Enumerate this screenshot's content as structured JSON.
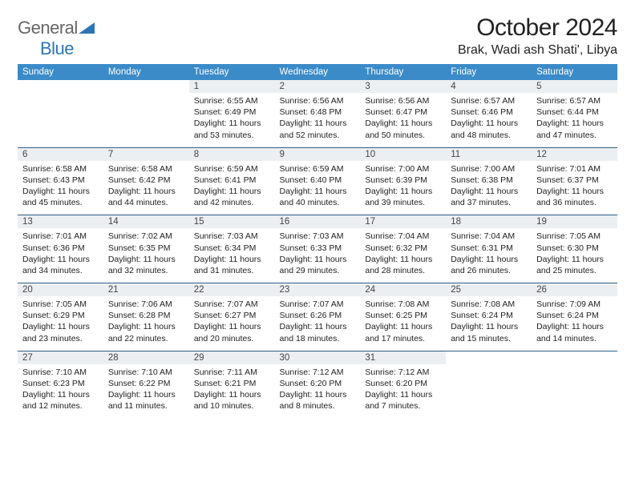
{
  "brand": {
    "general": "General",
    "blue": "Blue"
  },
  "title": "October 2024",
  "location": "Brak, Wadi ash Shati', Libya",
  "colors": {
    "header_bg": "#3b8bc8",
    "header_text": "#ffffff",
    "daynum_bg": "#eceff1",
    "rule": "#2e5f88",
    "logo_blue": "#2e75b6"
  },
  "fonts": {
    "title_pt": 30,
    "location_pt": 16,
    "dayhdr_pt": 11.5,
    "body_pt": 10.5
  },
  "dayHeaders": [
    "Sunday",
    "Monday",
    "Tuesday",
    "Wednesday",
    "Thursday",
    "Friday",
    "Saturday"
  ],
  "weeks": [
    [
      {
        "n": "",
        "lines": [
          "",
          "",
          "",
          ""
        ]
      },
      {
        "n": "",
        "lines": [
          "",
          "",
          "",
          ""
        ]
      },
      {
        "n": "1",
        "lines": [
          "Sunrise: 6:55 AM",
          "Sunset: 6:49 PM",
          "Daylight: 11 hours",
          "and 53 minutes."
        ]
      },
      {
        "n": "2",
        "lines": [
          "Sunrise: 6:56 AM",
          "Sunset: 6:48 PM",
          "Daylight: 11 hours",
          "and 52 minutes."
        ]
      },
      {
        "n": "3",
        "lines": [
          "Sunrise: 6:56 AM",
          "Sunset: 6:47 PM",
          "Daylight: 11 hours",
          "and 50 minutes."
        ]
      },
      {
        "n": "4",
        "lines": [
          "Sunrise: 6:57 AM",
          "Sunset: 6:46 PM",
          "Daylight: 11 hours",
          "and 48 minutes."
        ]
      },
      {
        "n": "5",
        "lines": [
          "Sunrise: 6:57 AM",
          "Sunset: 6:44 PM",
          "Daylight: 11 hours",
          "and 47 minutes."
        ]
      }
    ],
    [
      {
        "n": "6",
        "lines": [
          "Sunrise: 6:58 AM",
          "Sunset: 6:43 PM",
          "Daylight: 11 hours",
          "and 45 minutes."
        ]
      },
      {
        "n": "7",
        "lines": [
          "Sunrise: 6:58 AM",
          "Sunset: 6:42 PM",
          "Daylight: 11 hours",
          "and 44 minutes."
        ]
      },
      {
        "n": "8",
        "lines": [
          "Sunrise: 6:59 AM",
          "Sunset: 6:41 PM",
          "Daylight: 11 hours",
          "and 42 minutes."
        ]
      },
      {
        "n": "9",
        "lines": [
          "Sunrise: 6:59 AM",
          "Sunset: 6:40 PM",
          "Daylight: 11 hours",
          "and 40 minutes."
        ]
      },
      {
        "n": "10",
        "lines": [
          "Sunrise: 7:00 AM",
          "Sunset: 6:39 PM",
          "Daylight: 11 hours",
          "and 39 minutes."
        ]
      },
      {
        "n": "11",
        "lines": [
          "Sunrise: 7:00 AM",
          "Sunset: 6:38 PM",
          "Daylight: 11 hours",
          "and 37 minutes."
        ]
      },
      {
        "n": "12",
        "lines": [
          "Sunrise: 7:01 AM",
          "Sunset: 6:37 PM",
          "Daylight: 11 hours",
          "and 36 minutes."
        ]
      }
    ],
    [
      {
        "n": "13",
        "lines": [
          "Sunrise: 7:01 AM",
          "Sunset: 6:36 PM",
          "Daylight: 11 hours",
          "and 34 minutes."
        ]
      },
      {
        "n": "14",
        "lines": [
          "Sunrise: 7:02 AM",
          "Sunset: 6:35 PM",
          "Daylight: 11 hours",
          "and 32 minutes."
        ]
      },
      {
        "n": "15",
        "lines": [
          "Sunrise: 7:03 AM",
          "Sunset: 6:34 PM",
          "Daylight: 11 hours",
          "and 31 minutes."
        ]
      },
      {
        "n": "16",
        "lines": [
          "Sunrise: 7:03 AM",
          "Sunset: 6:33 PM",
          "Daylight: 11 hours",
          "and 29 minutes."
        ]
      },
      {
        "n": "17",
        "lines": [
          "Sunrise: 7:04 AM",
          "Sunset: 6:32 PM",
          "Daylight: 11 hours",
          "and 28 minutes."
        ]
      },
      {
        "n": "18",
        "lines": [
          "Sunrise: 7:04 AM",
          "Sunset: 6:31 PM",
          "Daylight: 11 hours",
          "and 26 minutes."
        ]
      },
      {
        "n": "19",
        "lines": [
          "Sunrise: 7:05 AM",
          "Sunset: 6:30 PM",
          "Daylight: 11 hours",
          "and 25 minutes."
        ]
      }
    ],
    [
      {
        "n": "20",
        "lines": [
          "Sunrise: 7:05 AM",
          "Sunset: 6:29 PM",
          "Daylight: 11 hours",
          "and 23 minutes."
        ]
      },
      {
        "n": "21",
        "lines": [
          "Sunrise: 7:06 AM",
          "Sunset: 6:28 PM",
          "Daylight: 11 hours",
          "and 22 minutes."
        ]
      },
      {
        "n": "22",
        "lines": [
          "Sunrise: 7:07 AM",
          "Sunset: 6:27 PM",
          "Daylight: 11 hours",
          "and 20 minutes."
        ]
      },
      {
        "n": "23",
        "lines": [
          "Sunrise: 7:07 AM",
          "Sunset: 6:26 PM",
          "Daylight: 11 hours",
          "and 18 minutes."
        ]
      },
      {
        "n": "24",
        "lines": [
          "Sunrise: 7:08 AM",
          "Sunset: 6:25 PM",
          "Daylight: 11 hours",
          "and 17 minutes."
        ]
      },
      {
        "n": "25",
        "lines": [
          "Sunrise: 7:08 AM",
          "Sunset: 6:24 PM",
          "Daylight: 11 hours",
          "and 15 minutes."
        ]
      },
      {
        "n": "26",
        "lines": [
          "Sunrise: 7:09 AM",
          "Sunset: 6:24 PM",
          "Daylight: 11 hours",
          "and 14 minutes."
        ]
      }
    ],
    [
      {
        "n": "27",
        "lines": [
          "Sunrise: 7:10 AM",
          "Sunset: 6:23 PM",
          "Daylight: 11 hours",
          "and 12 minutes."
        ]
      },
      {
        "n": "28",
        "lines": [
          "Sunrise: 7:10 AM",
          "Sunset: 6:22 PM",
          "Daylight: 11 hours",
          "and 11 minutes."
        ]
      },
      {
        "n": "29",
        "lines": [
          "Sunrise: 7:11 AM",
          "Sunset: 6:21 PM",
          "Daylight: 11 hours",
          "and 10 minutes."
        ]
      },
      {
        "n": "30",
        "lines": [
          "Sunrise: 7:12 AM",
          "Sunset: 6:20 PM",
          "Daylight: 11 hours",
          "and 8 minutes."
        ]
      },
      {
        "n": "31",
        "lines": [
          "Sunrise: 7:12 AM",
          "Sunset: 6:20 PM",
          "Daylight: 11 hours",
          "and 7 minutes."
        ]
      },
      {
        "n": "",
        "lines": [
          "",
          "",
          "",
          ""
        ]
      },
      {
        "n": "",
        "lines": [
          "",
          "",
          "",
          ""
        ]
      }
    ]
  ]
}
